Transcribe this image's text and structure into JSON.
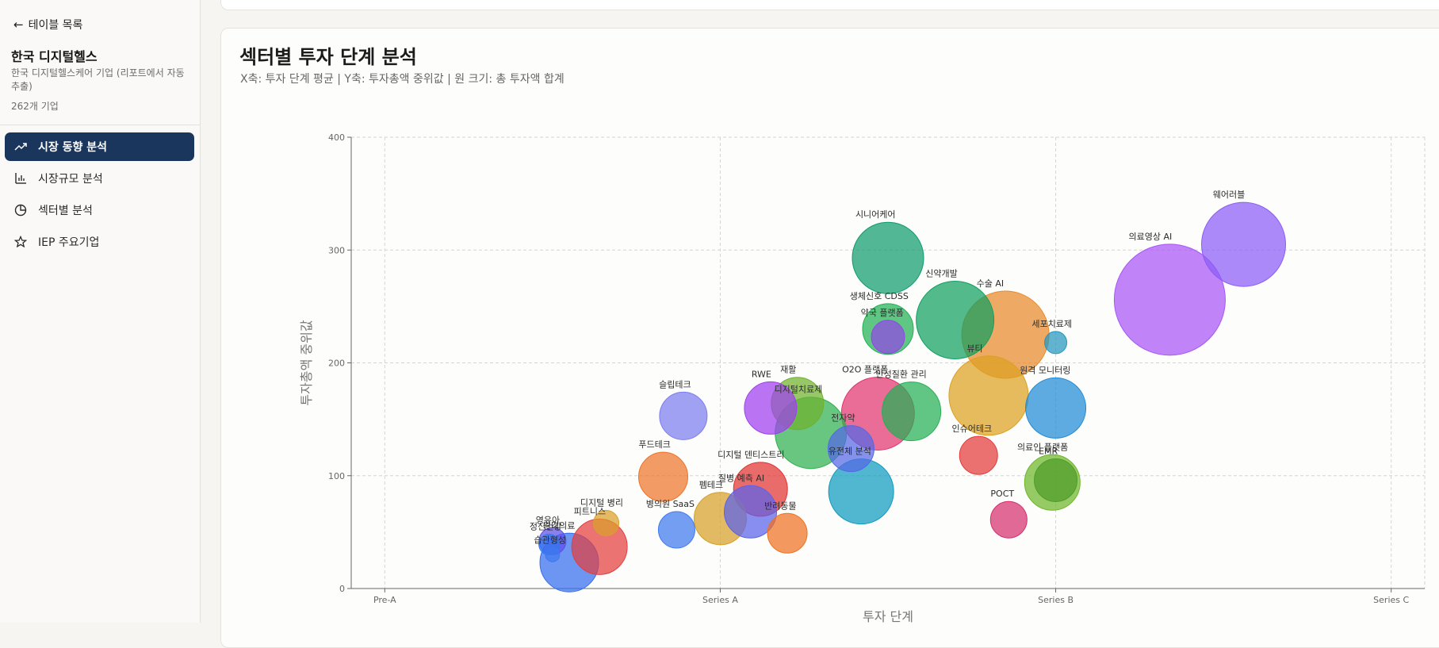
{
  "sidebar": {
    "back_label": "테이블 목록",
    "org_name": "한국 디지털헬스",
    "org_desc": "한국 디지털헬스케어 기업 (리포트에서 자동 추출)",
    "org_count": "262개 기업",
    "items": [
      {
        "label": "시장 동향 분석",
        "icon": "trend-up-icon",
        "active": true
      },
      {
        "label": "시장규모 분석",
        "icon": "bar-chart-icon",
        "active": false
      },
      {
        "label": "섹터별 분석",
        "icon": "pie-chart-icon",
        "active": false
      },
      {
        "label": "IEP 주요기업",
        "icon": "star-icon",
        "active": false
      }
    ]
  },
  "main": {
    "title": "섹터별 투자 단계 분석",
    "subtitle": "X축: 투자 단계 평균 | Y축: 투자총액 중위값 | 원 크기: 총 투자액 합계"
  },
  "chart_data": {
    "type": "scatter",
    "title": "섹터별 투자 단계 분석",
    "xlabel": "투자 단계",
    "ylabel": "투자총액 중위값",
    "x_ticks": [
      "Pre-A",
      "Series A",
      "Series B",
      "Series C"
    ],
    "y_ticks": [
      0,
      100,
      200,
      300,
      400
    ],
    "xlim": [
      -0.1,
      3.1
    ],
    "ylim": [
      0,
      400
    ],
    "grid": true,
    "points": [
      {
        "name": "의료영상 AI",
        "x": 2.34,
        "y": 256,
        "r": 70,
        "color": "#a855f7"
      },
      {
        "name": "웨어러블",
        "x": 2.56,
        "y": 305,
        "r": 53,
        "color": "#8b5cf6"
      },
      {
        "name": "시니어케어",
        "x": 1.5,
        "y": 293,
        "r": 45,
        "color": "#0f9b6e"
      },
      {
        "name": "신약개발",
        "x": 1.7,
        "y": 238,
        "r": 49,
        "color": "#10a060"
      },
      {
        "name": "수술 AI",
        "x": 1.85,
        "y": 225,
        "r": 55,
        "color": "#e8892a"
      },
      {
        "name": "세포치료제",
        "x": 2.0,
        "y": 218,
        "r": 14,
        "color": "#2596be"
      },
      {
        "name": "생체신호 CDSS",
        "x": 1.5,
        "y": 230,
        "r": 32,
        "color": "#22b055"
      },
      {
        "name": "약국 플랫폼",
        "x": 1.5,
        "y": 223,
        "r": 21,
        "color": "#9146e6"
      },
      {
        "name": "원격 모니터링",
        "x": 2.0,
        "y": 160,
        "r": 38,
        "color": "#1f8ad6"
      },
      {
        "name": "재활",
        "x": 1.23,
        "y": 164,
        "r": 33,
        "color": "#6fb12e"
      },
      {
        "name": "RWE",
        "x": 1.15,
        "y": 160,
        "r": 33,
        "color": "#a03ef0"
      },
      {
        "name": "디지털치료제",
        "x": 1.27,
        "y": 138,
        "r": 45,
        "color": "#2fb050"
      },
      {
        "name": "O2O 플랫폼",
        "x": 1.47,
        "y": 155,
        "r": 46,
        "color": "#e03470"
      },
      {
        "name": "만성질환 관리",
        "x": 1.57,
        "y": 157,
        "r": 37,
        "color": "#24b055"
      },
      {
        "name": "뷰티",
        "x": 1.8,
        "y": 171,
        "r": 50,
        "color": "#dca121"
      },
      {
        "name": "슬립테크",
        "x": 0.89,
        "y": 153,
        "r": 30,
        "color": "#7b7df0"
      },
      {
        "name": "푸드테크",
        "x": 0.83,
        "y": 99,
        "r": 31,
        "color": "#ee7429"
      },
      {
        "name": "인슈어테크",
        "x": 1.77,
        "y": 118,
        "r": 24,
        "color": "#e33a3a"
      },
      {
        "name": "의료인 플랫폼",
        "x": 1.99,
        "y": 94,
        "r": 35,
        "color": "#6eb529"
      },
      {
        "name": "유전체 분석",
        "x": 1.42,
        "y": 86,
        "r": 41,
        "color": "#0e9abf"
      },
      {
        "name": "디지털 덴티스트리",
        "x": 1.12,
        "y": 88,
        "r": 34,
        "color": "#e03333"
      },
      {
        "name": "전자약",
        "x": 1.39,
        "y": 124,
        "r": 29,
        "color": "#5468e6"
      },
      {
        "name": "POCT",
        "x": 1.86,
        "y": 61,
        "r": 23,
        "color": "#d42f6d"
      },
      {
        "name": "펨테크",
        "x": 1.0,
        "y": 62,
        "r": 33,
        "color": "#d6a028"
      },
      {
        "name": "질병 예측 AI",
        "x": 1.09,
        "y": 68,
        "r": 33,
        "color": "#5a62ea"
      },
      {
        "name": "반려동물",
        "x": 1.2,
        "y": 49,
        "r": 25,
        "color": "#ee7222"
      },
      {
        "name": "병의원 SaaS",
        "x": 0.87,
        "y": 52,
        "r": 23,
        "color": "#3f79ef"
      },
      {
        "name": "디지털 병리",
        "x": 0.66,
        "y": 58,
        "r": 16,
        "color": "#d9a02b"
      },
      {
        "name": "피트니스",
        "x": 0.64,
        "y": 37,
        "r": 35,
        "color": "#e33f3f"
      },
      {
        "name": "원격의료",
        "x": 0.55,
        "y": 23,
        "r": 37,
        "color": "#356ef0"
      },
      {
        "name": "영유아",
        "x": 0.5,
        "y": 42,
        "r": 17,
        "color": "#5b4fe8"
      },
      {
        "name": "정신건강",
        "x": 0.49,
        "y": 39,
        "r": 13,
        "color": "#3377ee"
      },
      {
        "name": "습관형성",
        "x": 0.5,
        "y": 30,
        "r": 9,
        "color": "#3f79ef"
      },
      {
        "name": "EMR",
        "x": 2.0,
        "y": 96,
        "r": 27,
        "color": "#4f9d2a"
      }
    ]
  }
}
